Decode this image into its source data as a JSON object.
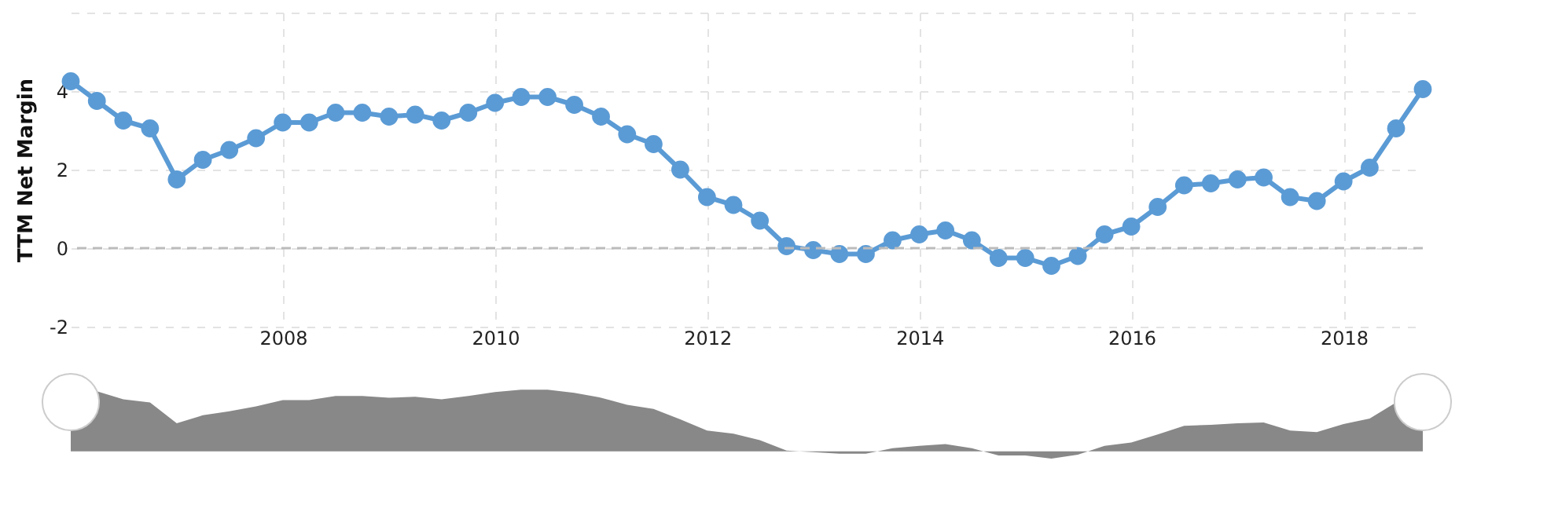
{
  "chart_data": {
    "type": "line",
    "ylabel": "TTM Net Margin",
    "x": [
      "2005-12-31",
      "2006-03-31",
      "2006-06-30",
      "2006-09-30",
      "2006-12-31",
      "2007-03-31",
      "2007-06-30",
      "2007-09-30",
      "2007-12-31",
      "2008-03-31",
      "2008-06-30",
      "2008-09-30",
      "2008-12-31",
      "2009-03-31",
      "2009-06-30",
      "2009-09-30",
      "2009-12-31",
      "2010-03-31",
      "2010-06-30",
      "2010-09-30",
      "2010-12-31",
      "2011-03-31",
      "2011-06-30",
      "2011-09-30",
      "2011-12-31",
      "2012-03-31",
      "2012-06-30",
      "2012-09-30",
      "2012-12-31",
      "2013-03-31",
      "2013-06-30",
      "2013-09-30",
      "2013-12-31",
      "2014-03-31",
      "2014-06-30",
      "2014-09-30",
      "2014-12-31",
      "2015-03-31",
      "2015-06-30",
      "2015-09-30",
      "2015-12-31",
      "2016-03-31",
      "2016-06-30",
      "2016-09-30",
      "2016-12-31",
      "2017-03-31",
      "2017-06-30",
      "2017-09-30",
      "2017-12-31",
      "2018-03-31",
      "2018-06-30",
      "2018-09-30"
    ],
    "series": [
      {
        "color": "#5b9bd5",
        "values": [
          4.25,
          3.75,
          3.25,
          3.05,
          1.75,
          2.25,
          2.5,
          2.8,
          3.2,
          3.2,
          3.45,
          3.45,
          3.35,
          3.4,
          3.25,
          3.45,
          3.7,
          3.85,
          3.85,
          3.65,
          3.35,
          2.9,
          2.65,
          2.0,
          1.3,
          1.1,
          0.7,
          0.05,
          -0.05,
          -0.15,
          -0.15,
          0.2,
          0.35,
          0.45,
          0.2,
          -0.25,
          -0.25,
          -0.45,
          -0.2,
          0.35,
          0.55,
          1.05,
          1.6,
          1.65,
          1.75,
          1.8,
          1.3,
          1.2,
          1.7,
          2.05,
          3.05,
          4.05
        ]
      }
    ],
    "xlim": [
      "2005-12-31",
      "2018-09-30"
    ],
    "xticks": [
      "2008",
      "2010",
      "2012",
      "2014",
      "2016",
      "2018"
    ],
    "ylim": [
      -2,
      6
    ],
    "yticks": [
      -2,
      0,
      2,
      4,
      {
        "value": 6,
        "label": null
      }
    ],
    "ref_lines": [
      {
        "axis": "y",
        "value": 0,
        "color": "#bbbbbb",
        "line_style": "dashed"
      }
    ],
    "grid": true,
    "marker": "circle",
    "line_style": "solid"
  }
}
